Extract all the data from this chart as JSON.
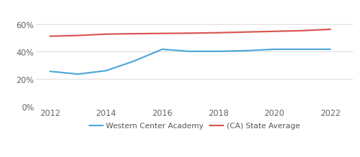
{
  "years_academy": [
    2012,
    2013,
    2014,
    2015,
    2016,
    2017,
    2018,
    2019,
    2020,
    2021,
    2022
  ],
  "values_academy": [
    0.255,
    0.235,
    0.26,
    0.33,
    0.415,
    0.4,
    0.4,
    0.405,
    0.415,
    0.415,
    0.415
  ],
  "years_state": [
    2012,
    2013,
    2014,
    2015,
    2016,
    2017,
    2018,
    2019,
    2020,
    2021,
    2022
  ],
  "values_state": [
    0.51,
    0.515,
    0.525,
    0.528,
    0.53,
    0.532,
    0.535,
    0.54,
    0.545,
    0.55,
    0.56
  ],
  "color_academy": "#4da6d9",
  "color_state": "#d9534f",
  "legend_academy": "Western Center Academy",
  "legend_state": "(CA) State Average",
  "yticks": [
    0.0,
    0.2,
    0.4,
    0.6
  ],
  "ytick_labels": [
    "0%",
    "20%",
    "40%",
    "60%"
  ],
  "xticks": [
    2012,
    2014,
    2016,
    2018,
    2020,
    2022
  ],
  "ylim": [
    0.0,
    0.72
  ],
  "xlim": [
    2011.5,
    2022.8
  ],
  "background_color": "#ffffff",
  "grid_color": "#dddddd",
  "line_width": 1.6,
  "tick_fontsize": 8.5,
  "legend_fontsize": 8
}
